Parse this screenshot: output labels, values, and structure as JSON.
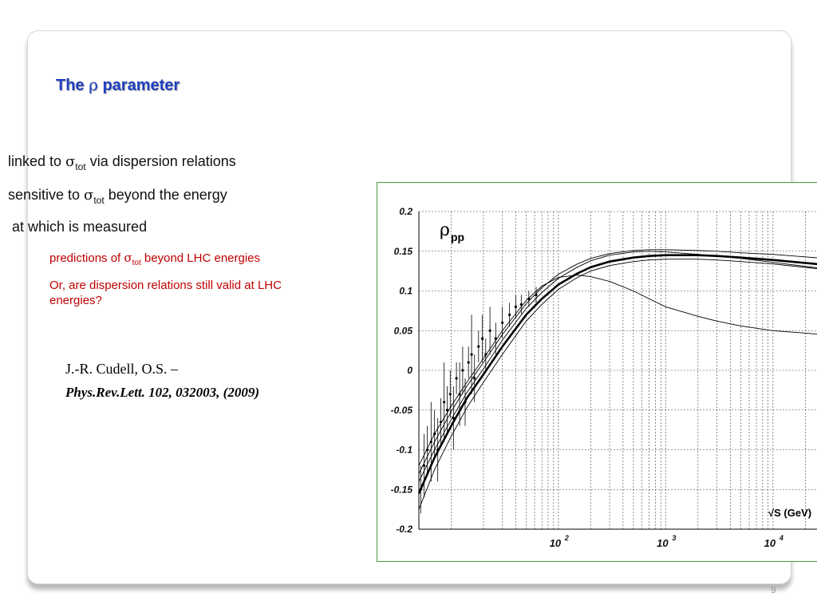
{
  "slide": {
    "title_pre": "The ",
    "title_symbol": "ρ",
    "title_post": " parameter",
    "bullets": [
      {
        "pre": "linked to ",
        "sym": "σ",
        "sub": "tot",
        "post": " via dispersion relations"
      },
      {
        "pre": "sensitive to ",
        "sym": "σ",
        "sub": "tot",
        "post": " beyond the energy"
      },
      {
        "text": " at which is measured"
      }
    ],
    "subbullets": [
      {
        "pre": "predictions of ",
        "sym": "σ",
        "sub": "tot",
        "post": " beyond LHC energies"
      },
      {
        "line1": "Or, are dispersion relations still valid at LHC",
        "line2": "energies?"
      }
    ],
    "reference": {
      "authors": "J.-R. Cudell,  O.S. –",
      "journal": "Phys.Rev.Lett. 102, 032003, (2009)"
    },
    "page_number": "9"
  },
  "chart_data": {
    "type": "line",
    "title": "",
    "plot_label": {
      "symbol": "ρ",
      "subscript": "pp"
    },
    "xlabel": "√S (GeV)",
    "ylabel": "",
    "xscale": "log",
    "xlim": [
      5,
      30000
    ],
    "ylim": [
      -0.2,
      0.2
    ],
    "yticks": [
      -0.2,
      -0.15,
      -0.1,
      -0.05,
      0,
      0.05,
      0.1,
      0.15,
      0.2
    ],
    "ytick_labels": [
      "-0.2",
      "-0.15",
      "-0.1",
      "-0.05",
      "0",
      "0.05",
      "0.1",
      "0.15",
      "0.2"
    ],
    "xticks": [
      {
        "value": 100,
        "base": "10",
        "exp": "2"
      },
      {
        "value": 1000,
        "base": "10",
        "exp": "3"
      },
      {
        "value": 10000,
        "base": "10",
        "exp": "4"
      }
    ],
    "grid": "dashed",
    "series": [
      {
        "style": "thick",
        "x": [
          5,
          7,
          10,
          14,
          20,
          30,
          50,
          70,
          100,
          150,
          200,
          300,
          500,
          700,
          1000,
          2000,
          3000,
          5000,
          10000,
          30000
        ],
        "y": [
          -0.155,
          -0.11,
          -0.07,
          -0.035,
          -0.005,
          0.03,
          0.07,
          0.09,
          0.108,
          0.122,
          0.13,
          0.137,
          0.142,
          0.144,
          0.145,
          0.145,
          0.144,
          0.142,
          0.139,
          0.133
        ]
      },
      {
        "style": "thin",
        "x": [
          5,
          7,
          10,
          14,
          20,
          30,
          50,
          70,
          100,
          150,
          200,
          300,
          500,
          700,
          1000,
          2000,
          3000,
          5000,
          10000,
          30000
        ],
        "y": [
          -0.13,
          -0.09,
          -0.052,
          -0.02,
          0.01,
          0.045,
          0.084,
          0.104,
          0.121,
          0.134,
          0.141,
          0.147,
          0.151,
          0.152,
          0.152,
          0.151,
          0.15,
          0.148,
          0.146,
          0.141
        ]
      },
      {
        "style": "thin",
        "x": [
          5,
          7,
          10,
          14,
          20,
          30,
          50,
          70,
          100,
          150,
          200,
          300,
          500,
          700,
          1000,
          2000,
          3000,
          5000,
          10000,
          30000
        ],
        "y": [
          -0.175,
          -0.125,
          -0.083,
          -0.047,
          -0.015,
          0.02,
          0.062,
          0.083,
          0.102,
          0.117,
          0.125,
          0.132,
          0.137,
          0.139,
          0.14,
          0.14,
          0.139,
          0.137,
          0.134,
          0.127
        ]
      },
      {
        "style": "thin",
        "x": [
          5,
          7,
          10,
          14,
          20,
          30,
          50,
          70,
          100,
          150,
          200,
          300,
          500,
          700,
          1000,
          2000,
          3000,
          5000,
          10000,
          30000
        ],
        "y": [
          -0.14,
          -0.1,
          -0.062,
          -0.028,
          0.002,
          0.038,
          0.078,
          0.098,
          0.116,
          0.13,
          0.138,
          0.145,
          0.149,
          0.15,
          0.149,
          0.146,
          0.144,
          0.141,
          0.136,
          0.128
        ]
      },
      {
        "style": "thin",
        "x": [
          5,
          7,
          10,
          14,
          20,
          30,
          50,
          70,
          100,
          150,
          200,
          300,
          500,
          700,
          1000,
          2000,
          3000,
          5000,
          10000,
          30000
        ],
        "y": [
          -0.12,
          -0.08,
          -0.045,
          -0.015,
          0.015,
          0.05,
          0.088,
          0.106,
          0.117,
          0.12,
          0.118,
          0.112,
          0.1,
          0.09,
          0.08,
          0.068,
          0.062,
          0.056,
          0.05,
          0.045
        ]
      }
    ],
    "points": [
      {
        "x": 5.2,
        "y": -0.15,
        "err": 0.03
      },
      {
        "x": 5.6,
        "y": -0.12,
        "err": 0.04
      },
      {
        "x": 6.0,
        "y": -0.1,
        "err": 0.03
      },
      {
        "x": 6.5,
        "y": -0.09,
        "err": 0.05
      },
      {
        "x": 7.0,
        "y": -0.08,
        "err": 0.03
      },
      {
        "x": 7.5,
        "y": -0.1,
        "err": 0.04
      },
      {
        "x": 8.0,
        "y": -0.065,
        "err": 0.03
      },
      {
        "x": 8.6,
        "y": -0.04,
        "err": 0.05
      },
      {
        "x": 9.2,
        "y": -0.05,
        "err": 0.03
      },
      {
        "x": 9.8,
        "y": -0.03,
        "err": 0.03
      },
      {
        "x": 10.5,
        "y": -0.06,
        "err": 0.04
      },
      {
        "x": 11.2,
        "y": -0.01,
        "err": 0.02
      },
      {
        "x": 12.0,
        "y": -0.03,
        "err": 0.04
      },
      {
        "x": 12.8,
        "y": 0.0,
        "err": 0.03
      },
      {
        "x": 13.5,
        "y": -0.04,
        "err": 0.03
      },
      {
        "x": 14.5,
        "y": 0.01,
        "err": 0.02
      },
      {
        "x": 15.5,
        "y": 0.02,
        "err": 0.05
      },
      {
        "x": 16.5,
        "y": -0.01,
        "err": 0.03
      },
      {
        "x": 18.0,
        "y": 0.03,
        "err": 0.02
      },
      {
        "x": 19.5,
        "y": 0.04,
        "err": 0.03
      },
      {
        "x": 21.0,
        "y": 0.02,
        "err": 0.02
      },
      {
        "x": 23.0,
        "y": 0.05,
        "err": 0.03
      },
      {
        "x": 26.0,
        "y": 0.04,
        "err": 0.02
      },
      {
        "x": 30.0,
        "y": 0.06,
        "err": 0.02
      },
      {
        "x": 35.0,
        "y": 0.07,
        "err": 0.015
      },
      {
        "x": 40.0,
        "y": 0.08,
        "err": 0.015
      },
      {
        "x": 45.0,
        "y": 0.083,
        "err": 0.012
      },
      {
        "x": 53.0,
        "y": 0.09,
        "err": 0.01
      },
      {
        "x": 62.0,
        "y": 0.095,
        "err": 0.01
      }
    ]
  }
}
